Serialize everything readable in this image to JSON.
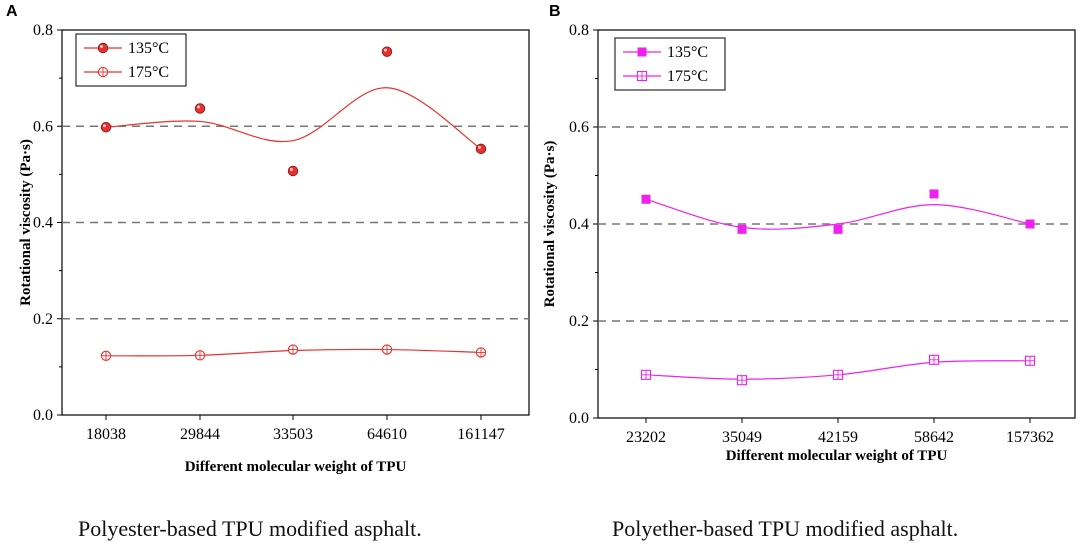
{
  "chart_data": [
    {
      "panel": "A",
      "type": "scatter",
      "categories": [
        "18038",
        "29844",
        "33503",
        "64610",
        "161147"
      ],
      "xlabel": "Different molecular weight of TPU",
      "ylabel": "Rotational viscosity (Pa·s)",
      "ylim": [
        0.0,
        0.8
      ],
      "yticks": [
        "0.0",
        "0.2",
        "0.4",
        "0.6",
        "0.8"
      ],
      "dashed_gridlines": [
        0.2,
        0.4,
        0.6
      ],
      "legend_position": "top-left",
      "color": "#e8312e",
      "series": [
        {
          "name": "135°C",
          "marker": "filled-circle",
          "values": [
            0.598,
            0.637,
            0.507,
            0.755,
            0.553
          ],
          "fit": [
            0.598,
            0.61,
            0.57,
            0.68,
            0.553
          ]
        },
        {
          "name": "175°C",
          "marker": "open-circle-cross",
          "values": [
            0.123,
            0.124,
            0.136,
            0.136,
            0.13
          ],
          "fit": [
            0.123,
            0.124,
            0.134,
            0.136,
            0.13
          ]
        }
      ],
      "caption": "Polyester-based TPU modified asphalt."
    },
    {
      "panel": "B",
      "type": "scatter",
      "categories": [
        "23202",
        "35049",
        "42159",
        "58642",
        "157362"
      ],
      "xlabel": "Different molecular weight of TPU",
      "ylabel": "Rotational viscosity (Pa·s)",
      "ylim": [
        0.0,
        0.8
      ],
      "yticks": [
        "0.0",
        "0.2",
        "0.4",
        "0.6",
        "0.8"
      ],
      "dashed_gridlines": [
        0.2,
        0.4,
        0.6
      ],
      "legend_position": "top-left",
      "color": "#ee22ee",
      "series": [
        {
          "name": "135°C",
          "marker": "filled-square",
          "values": [
            0.451,
            0.389,
            0.389,
            0.462,
            0.4
          ],
          "fit": [
            0.451,
            0.393,
            0.4,
            0.44,
            0.4
          ]
        },
        {
          "name": "175°C",
          "marker": "open-square-cross",
          "values": [
            0.089,
            0.078,
            0.089,
            0.12,
            0.118
          ],
          "fit": [
            0.089,
            0.08,
            0.089,
            0.115,
            0.118
          ]
        }
      ],
      "caption": "Polyether-based TPU modified asphalt."
    }
  ]
}
